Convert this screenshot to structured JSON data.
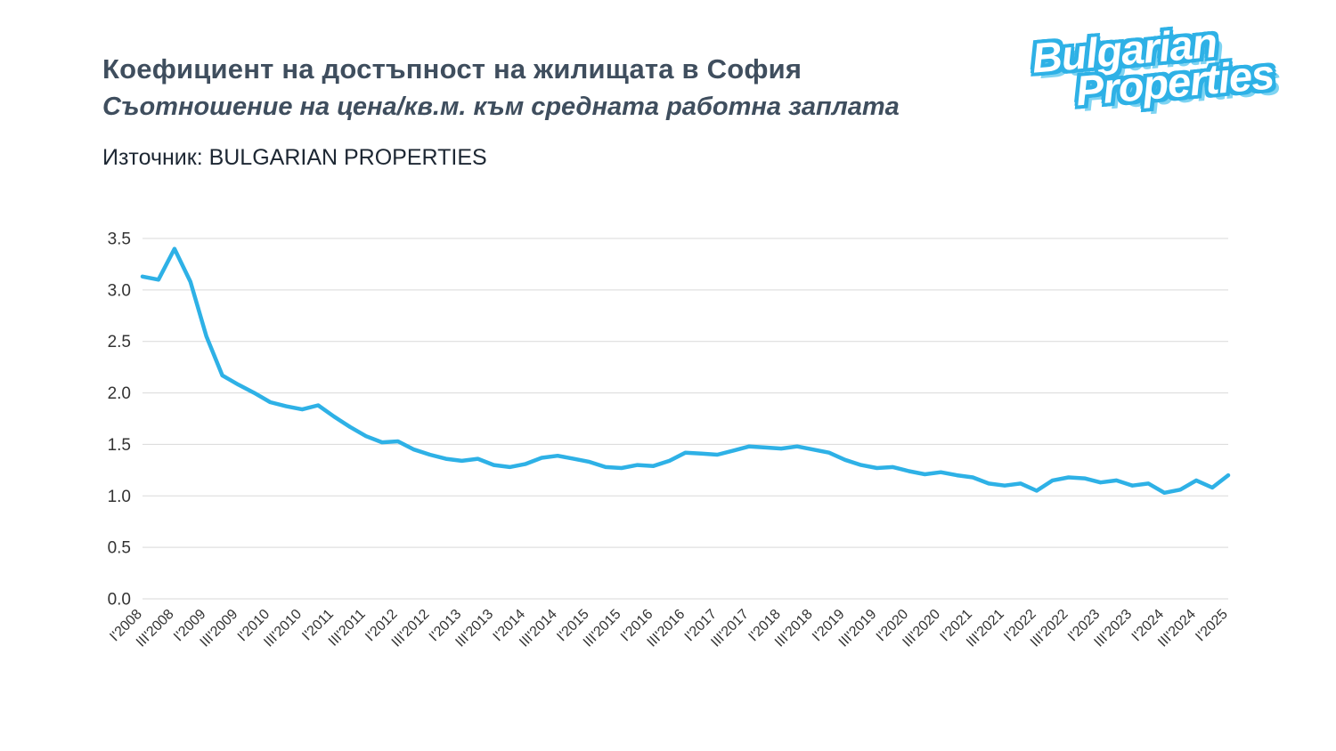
{
  "header": {
    "title": "Коефициент на достъпност на жилищата в София",
    "subtitle": "Съотношение на цена/кв.м. към средната работна заплата",
    "source": "Източник: BULGARIAN PROPERTIES"
  },
  "logo": {
    "line1": "Bulgarian",
    "line2": "Properties",
    "color": "#2eb1e6"
  },
  "chart_data": {
    "type": "line",
    "title": "Коефициент на достъпност на жилищата в София",
    "xlabel": "",
    "ylabel": "",
    "ylim": [
      0.0,
      3.5
    ],
    "yticks": [
      0.0,
      0.5,
      1.0,
      1.5,
      2.0,
      2.5,
      3.0,
      3.5
    ],
    "grid": "horizontal",
    "legend": "none",
    "line_color": "#2eb1e6",
    "x_tick_every": 2,
    "x_tick_labels": [
      "I'2008",
      "III'2008",
      "I'2009",
      "III'2009",
      "I'2010",
      "III'2010",
      "I'2011",
      "III'2011",
      "I'2012",
      "III'2012",
      "I'2013",
      "III'2013",
      "I'2014",
      "III'2014",
      "I'2015",
      "III'2015",
      "I'2016",
      "III'2016",
      "I'2017",
      "III'2017",
      "I'2018",
      "III'2018",
      "I'2019",
      "III'2019",
      "I'2020",
      "III'2020",
      "I'2021",
      "III'2021",
      "I'2022",
      "III'2022",
      "I'2023",
      "III'2023",
      "I'2024",
      "III'2024",
      "I'2025"
    ],
    "categories": [
      "I'2008",
      "II'2008",
      "III'2008",
      "IV'2008",
      "I'2009",
      "II'2009",
      "III'2009",
      "IV'2009",
      "I'2010",
      "II'2010",
      "III'2010",
      "IV'2010",
      "I'2011",
      "II'2011",
      "III'2011",
      "IV'2011",
      "I'2012",
      "II'2012",
      "III'2012",
      "IV'2012",
      "I'2013",
      "II'2013",
      "III'2013",
      "IV'2013",
      "I'2014",
      "II'2014",
      "III'2014",
      "IV'2014",
      "I'2015",
      "II'2015",
      "III'2015",
      "IV'2015",
      "I'2016",
      "II'2016",
      "III'2016",
      "IV'2016",
      "I'2017",
      "II'2017",
      "III'2017",
      "IV'2017",
      "I'2018",
      "II'2018",
      "III'2018",
      "IV'2018",
      "I'2019",
      "II'2019",
      "III'2019",
      "IV'2019",
      "I'2020",
      "II'2020",
      "III'2020",
      "IV'2020",
      "I'2021",
      "II'2021",
      "III'2021",
      "IV'2021",
      "I'2022",
      "II'2022",
      "III'2022",
      "IV'2022",
      "I'2023",
      "II'2023",
      "III'2023",
      "IV'2023",
      "I'2024",
      "II'2024",
      "III'2024",
      "IV'2024",
      "I'2025"
    ],
    "values": [
      3.13,
      3.1,
      3.4,
      3.08,
      2.55,
      2.17,
      2.08,
      2.0,
      1.91,
      1.87,
      1.84,
      1.88,
      1.77,
      1.67,
      1.58,
      1.52,
      1.53,
      1.45,
      1.4,
      1.36,
      1.34,
      1.36,
      1.3,
      1.28,
      1.31,
      1.37,
      1.39,
      1.36,
      1.33,
      1.28,
      1.27,
      1.3,
      1.29,
      1.34,
      1.42,
      1.41,
      1.4,
      1.44,
      1.48,
      1.47,
      1.46,
      1.48,
      1.45,
      1.42,
      1.35,
      1.3,
      1.27,
      1.28,
      1.24,
      1.21,
      1.23,
      1.2,
      1.18,
      1.12,
      1.1,
      1.12,
      1.05,
      1.15,
      1.18,
      1.17,
      1.13,
      1.15,
      1.1,
      1.12,
      1.03,
      1.06,
      1.15,
      1.08,
      1.2
    ]
  }
}
